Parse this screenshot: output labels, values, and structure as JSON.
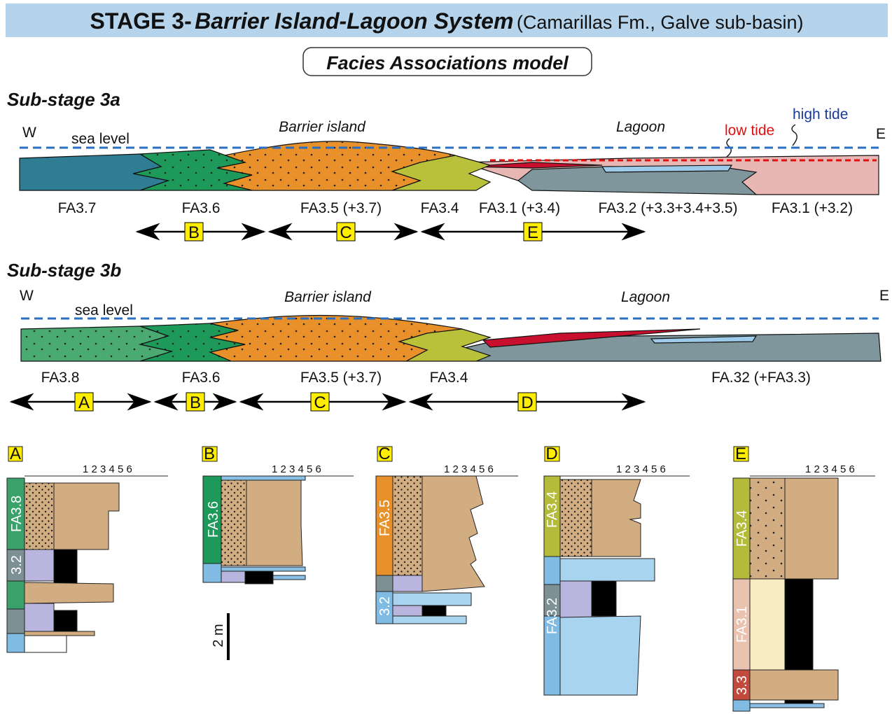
{
  "header": {
    "stage": "STAGE 3-",
    "system": "Barrier Island-Lagoon System",
    "location": "(Camarillas Fm., Galve sub-basin)"
  },
  "model_label": "Facies Associations model",
  "substages": [
    {
      "label": "Sub-stage 3a",
      "west": "W",
      "east": "E",
      "sea_level": "sea level",
      "barrier": "Barrier island",
      "lagoon": "Lagoon",
      "low_tide": "low tide",
      "high_tide": "high tide",
      "facies": [
        "FA3.7",
        "FA3.6",
        "FA3.5 (+3.7)",
        "FA3.4",
        "FA3.1 (+3.4)",
        "FA3.2 (+3.3+3.4+3.5)",
        "FA3.1 (+3.2)"
      ],
      "logs": [
        "B",
        "C",
        "E"
      ]
    },
    {
      "label": "Sub-stage 3b",
      "west": "W",
      "east": "E",
      "sea_level": "sea level",
      "barrier": "Barrier island",
      "lagoon": "Lagoon",
      "facies": [
        "FA3.8",
        "FA3.6",
        "FA3.5 (+3.7)",
        "FA3.4",
        "FA.32 (+FA3.3)"
      ],
      "logs": [
        "A",
        "B",
        "C",
        "D"
      ]
    }
  ],
  "grain_scale": "1 2 3 4 5 6",
  "logs": [
    {
      "letter": "A",
      "units": [
        "FA3.8",
        "3.2"
      ]
    },
    {
      "letter": "B",
      "units": [
        "FA3.6"
      ]
    },
    {
      "letter": "C",
      "units": [
        "FA3.5",
        "3.2"
      ]
    },
    {
      "letter": "D",
      "units": [
        "FA3.4",
        "FA3.2"
      ]
    },
    {
      "letter": "E",
      "units": [
        "FA3.4",
        "FA3.1",
        "3.3"
      ]
    }
  ],
  "scale_bar": "2 m"
}
